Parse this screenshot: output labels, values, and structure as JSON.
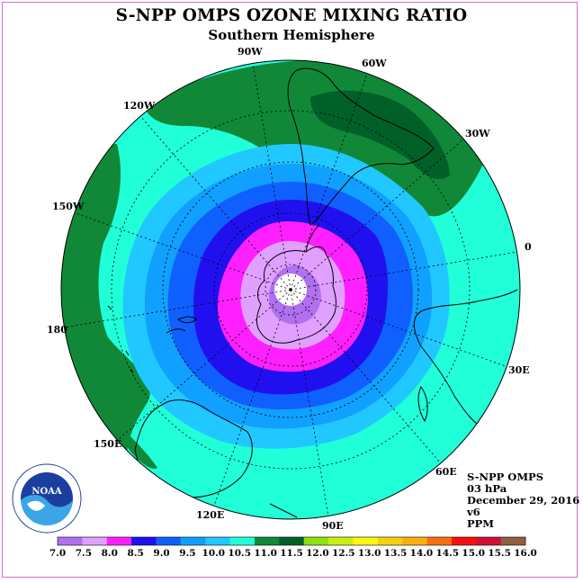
{
  "title": "S-NPP OMPS OZONE MIXING RATIO",
  "subtitle": "Southern Hemisphere",
  "longitude_labels": [
    {
      "id": "90W",
      "text": "90W"
    },
    {
      "id": "60W",
      "text": "60W"
    },
    {
      "id": "120W",
      "text": "120W"
    },
    {
      "id": "30W",
      "text": "30W"
    },
    {
      "id": "150W",
      "text": "150W"
    },
    {
      "id": "0",
      "text": "0"
    },
    {
      "id": "180",
      "text": "180"
    },
    {
      "id": "30E",
      "text": "30E"
    },
    {
      "id": "150E",
      "text": "150E"
    },
    {
      "id": "60E",
      "text": "60E"
    },
    {
      "id": "120E",
      "text": "120E"
    },
    {
      "id": "90E",
      "text": "90E"
    }
  ],
  "info": {
    "instrument": "S-NPP OMPS",
    "level": "03 hPa",
    "date": "December 29, 2016",
    "version": "v6",
    "units": "PPM"
  },
  "logo": {
    "text": "NOAA",
    "ring_text": "NATIONAL OCEANIC AND ATMOSPHERIC ADMINISTRATION · U.S. DEPARTMENT OF COMMERCE"
  },
  "colorbar": {
    "ticks": [
      "7.0",
      "7.5",
      "8.0",
      "8.5",
      "9.0",
      "9.5",
      "10.0",
      "10.5",
      "11.0",
      "11.5",
      "12.0",
      "12.5",
      "13.0",
      "13.5",
      "14.0",
      "14.5",
      "15.0",
      "15.5",
      "16.0"
    ],
    "colors": [
      "#b070f0",
      "#e0a0ff",
      "#ff20ff",
      "#2010f0",
      "#1060ff",
      "#10a0ff",
      "#20c8ff",
      "#20ffd8",
      "#108838",
      "#006028",
      "#90e010",
      "#c8f010",
      "#f8f810",
      "#f8d010",
      "#f8b010",
      "#f87010",
      "#f81010",
      "#d01030",
      "#906040"
    ]
  },
  "map_colors": {
    "background_level": "#20ffd8",
    "green_high": "#108838",
    "dark_green": "#006028",
    "outer_blue": "#20c8ff",
    "mid_blue": "#10a0ff",
    "deep_blue": "#1060ff",
    "navy": "#2010f0",
    "magenta": "#ff20ff",
    "lavender": "#e0a0ff",
    "purple": "#b070f0"
  }
}
